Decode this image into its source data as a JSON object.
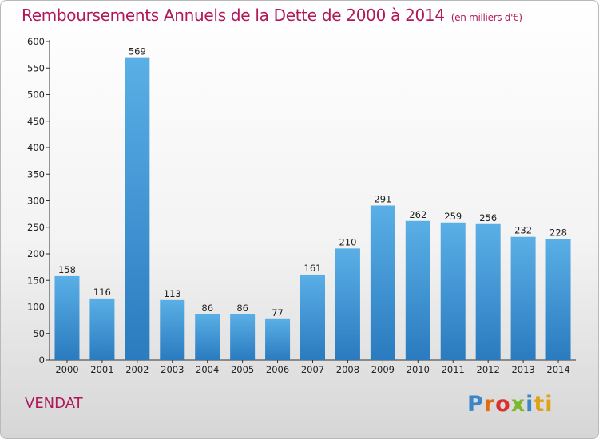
{
  "header": {
    "title": "Remboursements Annuels de la Dette de 2000 à 2014",
    "unit": "(en milliers d'€)"
  },
  "footer": {
    "town": "VENDAT",
    "logo": [
      "P",
      "r",
      "o",
      "x",
      "i",
      "ti"
    ]
  },
  "colors": {
    "title": "#b0185a",
    "bar_top": "#5aafe6",
    "bar_bottom": "#2a7bbf"
  },
  "chart_data": {
    "type": "bar",
    "title": "Remboursements Annuels de la Dette de 2000 à 2014",
    "subtitle": "(en milliers d'€)",
    "xlabel": "",
    "ylabel": "",
    "categories": [
      "2000",
      "2001",
      "2002",
      "2003",
      "2004",
      "2005",
      "2006",
      "2007",
      "2008",
      "2009",
      "2010",
      "2011",
      "2012",
      "2013",
      "2014"
    ],
    "values": [
      158,
      116,
      569,
      113,
      86,
      86,
      77,
      161,
      210,
      291,
      262,
      259,
      256,
      232,
      228
    ],
    "ylim": [
      0,
      600
    ],
    "yticks": [
      0,
      50,
      100,
      150,
      200,
      250,
      300,
      350,
      400,
      450,
      500,
      550,
      600
    ],
    "grid": false,
    "data_labels": true
  }
}
